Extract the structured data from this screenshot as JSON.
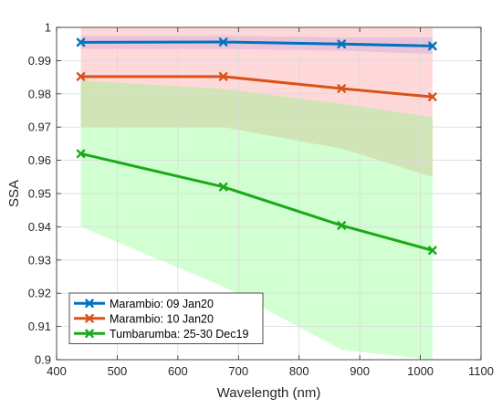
{
  "chart_data": {
    "type": "line",
    "xlabel": "Wavelength (nm)",
    "ylabel": "SSA",
    "xlim": [
      400,
      1100
    ],
    "ylim": [
      0.9,
      1.0
    ],
    "xticks": [
      400,
      500,
      600,
      700,
      800,
      900,
      1000,
      1100
    ],
    "yticks": [
      0.9,
      0.91,
      0.92,
      0.93,
      0.94,
      0.95,
      0.96,
      0.97,
      0.98,
      0.99,
      1.0
    ],
    "grid": true,
    "legend_position": "bottom-left",
    "x": [
      440,
      675,
      870,
      1020
    ],
    "series": [
      {
        "name": "Marambio: 09 Jan20",
        "values": [
          0.9955,
          0.9956,
          0.995,
          0.9944
        ],
        "color": "#0072BD",
        "band_upper": [
          0.9975,
          0.9975,
          0.997,
          0.997
        ],
        "band_lower": [
          0.9935,
          0.9935,
          0.993,
          0.992
        ],
        "band_color": "#9999ff"
      },
      {
        "name": "Marambio: 10 Jan20",
        "values": [
          0.9852,
          0.9852,
          0.9816,
          0.9791
        ],
        "color": "#D95319",
        "band_upper": [
          1.0,
          1.0,
          1.0,
          1.0
        ],
        "band_lower": [
          0.97,
          0.97,
          0.9635,
          0.955
        ],
        "band_color": "#ff8080"
      },
      {
        "name": "Tumbarumba: 25-30 Dec19",
        "values": [
          0.962,
          0.952,
          0.9404,
          0.9329
        ],
        "color": "#1AAA1A",
        "band_upper": [
          0.984,
          0.9815,
          0.977,
          0.973
        ],
        "band_lower": [
          0.94,
          0.922,
          0.903,
          0.9
        ],
        "band_color": "#66ff66"
      }
    ]
  }
}
